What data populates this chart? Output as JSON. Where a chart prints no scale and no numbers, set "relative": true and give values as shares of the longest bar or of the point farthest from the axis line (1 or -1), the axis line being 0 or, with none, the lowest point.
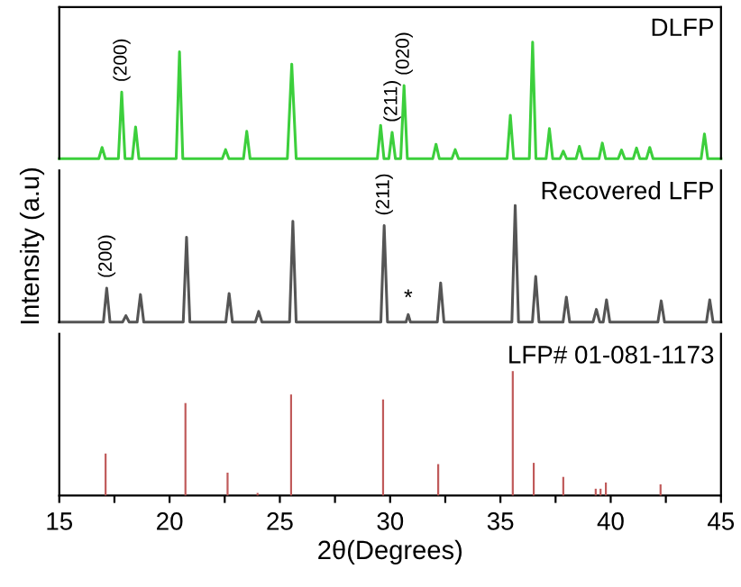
{
  "chart_data": [
    {
      "type": "line",
      "relative": true,
      "tick_labels": false,
      "xlim": [
        15,
        45
      ],
      "series": [
        {
          "name": "DLFP",
          "color": "#3ccf3c",
          "x": [
            15,
            16.79,
            16.94,
            17.09,
            17.68,
            17.83,
            17.98,
            18.31,
            18.46,
            18.61,
            20.3,
            20.45,
            20.6,
            22.39,
            22.54,
            22.69,
            23.35,
            23.5,
            23.65,
            25.34,
            25.54,
            25.74,
            29.42,
            29.57,
            29.72,
            29.94,
            30.09,
            30.24,
            30.48,
            30.63,
            30.78,
            31.93,
            32.08,
            32.23,
            32.8,
            32.95,
            33.1,
            35.3,
            35.45,
            35.6,
            36.31,
            36.46,
            36.61,
            37.07,
            37.22,
            37.37,
            37.7,
            37.85,
            38.0,
            38.43,
            38.58,
            38.73,
            39.47,
            39.62,
            39.77,
            40.34,
            40.49,
            40.64,
            41.02,
            41.17,
            41.32,
            41.62,
            41.77,
            41.92,
            44.1,
            44.25,
            44.4,
            45
          ],
          "values": [
            0,
            0,
            0.097,
            0,
            0,
            0.571,
            0,
            0,
            0.272,
            0,
            0,
            0.917,
            0,
            0,
            0.078,
            0,
            0,
            0.235,
            0,
            0,
            0.811,
            0,
            0,
            0.286,
            0,
            0,
            0.226,
            0,
            0,
            0.627,
            0,
            0,
            0.124,
            0,
            0,
            0.078,
            0,
            0,
            0.373,
            0,
            0,
            1,
            0,
            0,
            0.258,
            0,
            0,
            0.065,
            0,
            0,
            0.106,
            0,
            0,
            0.134,
            0,
            0,
            0.074,
            0,
            0,
            0.092,
            0,
            0,
            0.097,
            0,
            0,
            0.212,
            0,
            0
          ]
        }
      ],
      "annotations": [
        {
          "text": "(200)",
          "x": 17.83,
          "y": 0.571
        },
        {
          "text": "(211)",
          "x": 30.09,
          "y": 0.226
        },
        {
          "text": "(020)",
          "x": 30.63,
          "y": 0.627
        }
      ]
    },
    {
      "type": "line",
      "relative": true,
      "tick_labels": false,
      "xlim": [
        15,
        45
      ],
      "ylabel": "Intensity (a.u)",
      "series": [
        {
          "name": "Recovered LFP",
          "color": "#555555",
          "x": [
            15,
            17.0,
            17.15,
            17.3,
            17.87,
            18.02,
            18.17,
            18.53,
            18.68,
            18.83,
            20.62,
            20.77,
            20.92,
            22.55,
            22.7,
            22.85,
            23.89,
            24.04,
            24.19,
            25.44,
            25.59,
            25.74,
            29.58,
            29.73,
            29.88,
            30.72,
            30.82,
            30.92,
            32.14,
            32.29,
            32.44,
            35.52,
            35.67,
            35.82,
            36.45,
            36.6,
            36.75,
            37.84,
            37.99,
            38.14,
            39.2,
            39.35,
            39.5,
            39.66,
            39.81,
            39.96,
            42.14,
            42.29,
            42.44,
            44.34,
            44.49,
            44.64,
            45
          ],
          "values": [
            0,
            0,
            0.291,
            0,
            0,
            0.055,
            0,
            0,
            0.236,
            0,
            0,
            0.727,
            0,
            0,
            0.245,
            0,
            0,
            0.091,
            0,
            0,
            0.864,
            0,
            0,
            0.827,
            0,
            0,
            0.064,
            0,
            0,
            0.336,
            0,
            0,
            1,
            0,
            0,
            0.391,
            0,
            0,
            0.214,
            0,
            0,
            0.109,
            0,
            0,
            0.191,
            0,
            0,
            0.182,
            0,
            0,
            0.191,
            0,
            0
          ]
        }
      ],
      "annotations": [
        {
          "text": "(200)",
          "x": 17.15,
          "y": 0.291
        },
        {
          "text": "(211)",
          "x": 29.73,
          "y": 0.827
        },
        {
          "text": "*",
          "x": 30.82,
          "y": 0.064
        }
      ]
    },
    {
      "type": "bar",
      "relative": true,
      "tick_labels": "x",
      "xlim": [
        15,
        45
      ],
      "xlabel": "2θ(Degrees)",
      "xticks": [
        15,
        {
          "value": 17.5,
          "label": null
        },
        20,
        {
          "value": 22.5,
          "label": null
        },
        25,
        {
          "value": 27.5,
          "label": null
        },
        30,
        {
          "value": 32.5,
          "label": null
        },
        35,
        {
          "value": 37.5,
          "label": null
        },
        40,
        {
          "value": 42.5,
          "label": null
        },
        45
      ],
      "series": [
        {
          "name": "LFP# 01-081-1173",
          "color": "#c05a5a",
          "x": [
            17.1,
            20.72,
            22.63,
            23.99,
            25.51,
            29.68,
            32.18,
            35.56,
            36.51,
            37.85,
            39.32,
            39.54,
            39.78,
            42.26
          ],
          "values": [
            0.337,
            0.743,
            0.183,
            0.02,
            0.812,
            0.772,
            0.252,
            1,
            0.262,
            0.149,
            0.054,
            0.054,
            0.104,
            0.089
          ]
        }
      ]
    }
  ]
}
